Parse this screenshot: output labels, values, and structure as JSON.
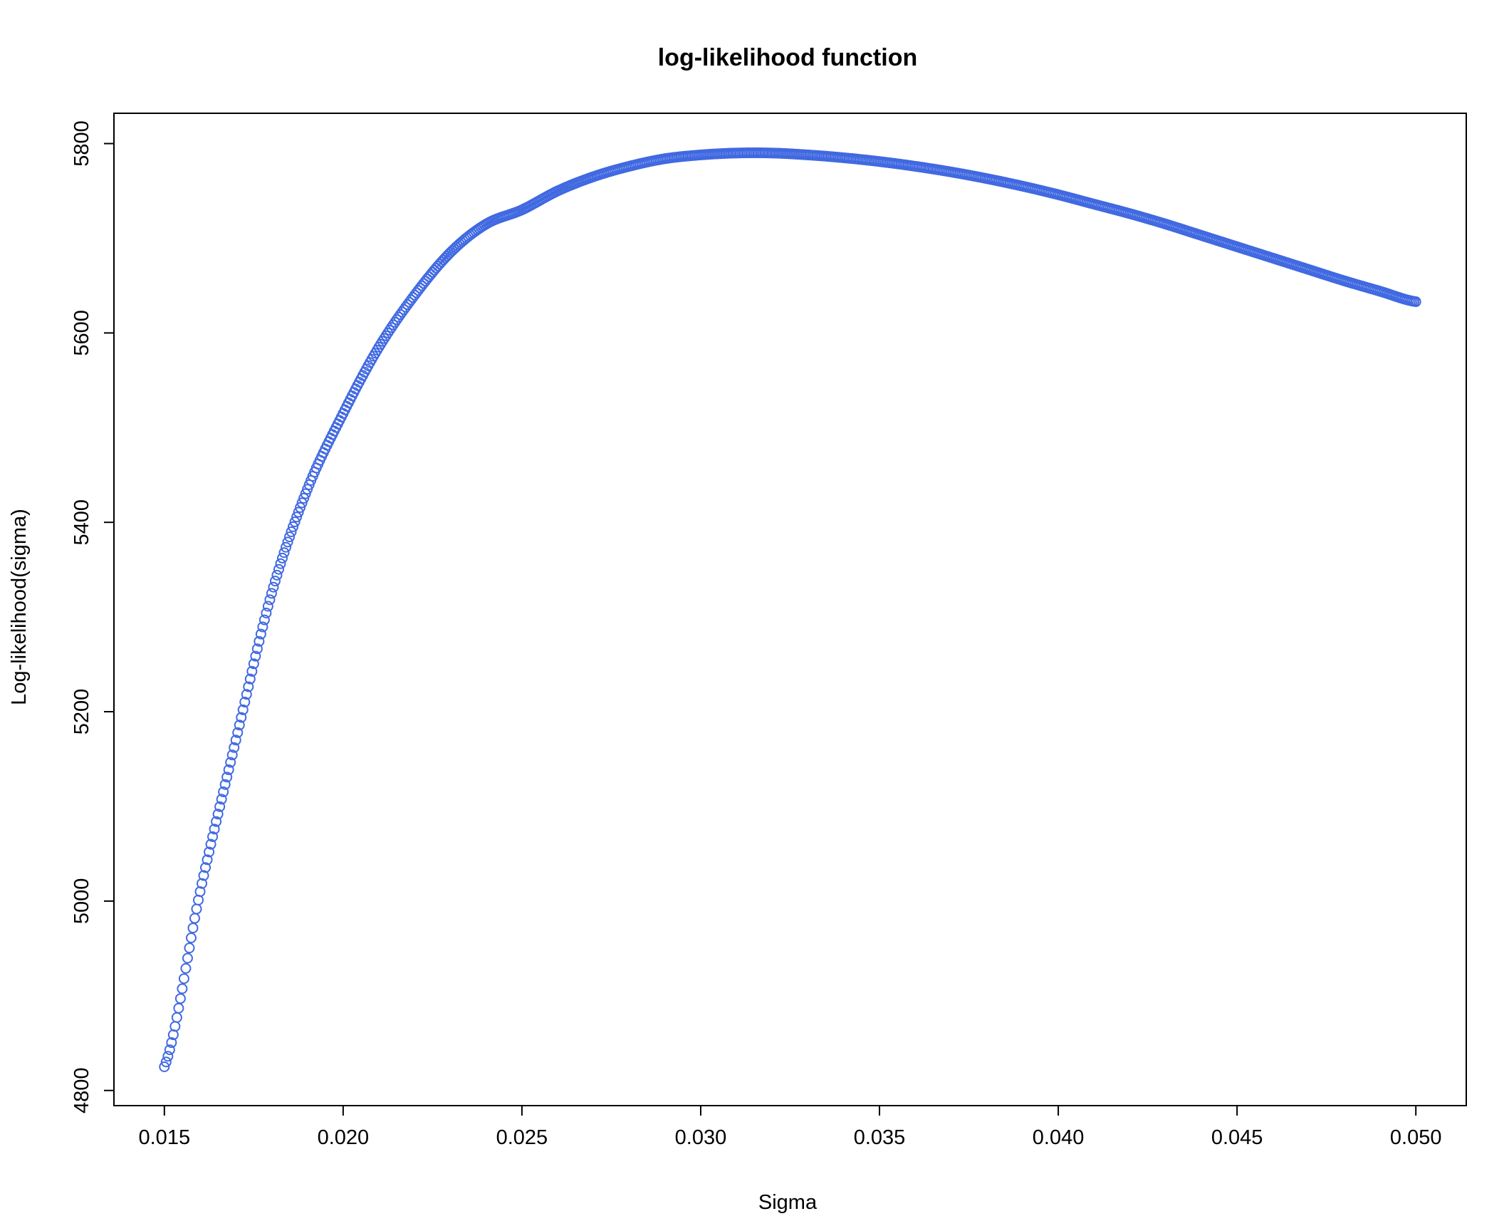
{
  "chart_data": {
    "type": "scatter",
    "title": "log-likelihood function",
    "xlabel": "Sigma",
    "ylabel": "Log-likelihood(sigma)",
    "xlim": [
      0.01359,
      0.05141
    ],
    "ylim": [
      4784,
      5832
    ],
    "x_ticks": [
      0.015,
      0.02,
      0.025,
      0.03,
      0.035,
      0.04,
      0.045,
      0.05
    ],
    "x_tick_labels": [
      "0.015",
      "0.020",
      "0.025",
      "0.030",
      "0.035",
      "0.040",
      "0.045",
      "0.050"
    ],
    "y_ticks": [
      4800,
      5000,
      5200,
      5400,
      5600,
      5800
    ],
    "y_tick_labels": [
      "4800",
      "5000",
      "5200",
      "5400",
      "5600",
      "5800"
    ],
    "grid": false,
    "legend": "none",
    "marker": "open-circle",
    "color": "#4169E1",
    "x": [
      0.015,
      0.016,
      0.017,
      0.018,
      0.019,
      0.02,
      0.021,
      0.022,
      0.023,
      0.024,
      0.025,
      0.026,
      0.027,
      0.028,
      0.029,
      0.03,
      0.031,
      0.032,
      0.033,
      0.034,
      0.035,
      0.036,
      0.037,
      0.038,
      0.039,
      0.04,
      0.041,
      0.042,
      0.043,
      0.044,
      0.045,
      0.046,
      0.047,
      0.048,
      0.049,
      0.05
    ],
    "y": [
      4825,
      5010,
      5170,
      5325,
      5435,
      5515,
      5585,
      5640,
      5685,
      5715,
      5730,
      5750,
      5765,
      5776,
      5784,
      5788,
      5790,
      5790,
      5788,
      5785,
      5781,
      5776,
      5770,
      5763,
      5755,
      5746,
      5736,
      5726,
      5715,
      5703,
      5691,
      5679,
      5667,
      5655,
      5644,
      5633
    ]
  }
}
